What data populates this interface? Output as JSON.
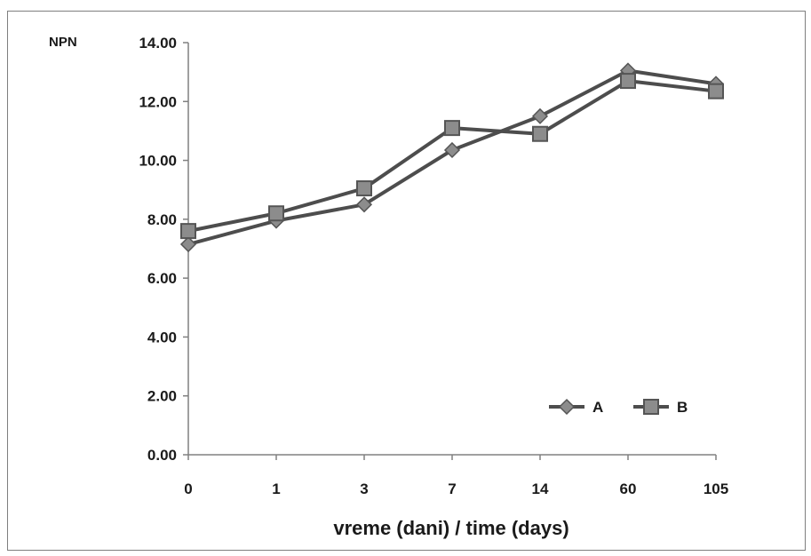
{
  "chart_data": {
    "type": "line",
    "title": "",
    "ylabel": "NPN",
    "xlabel": "vreme (dani) / time (days)",
    "categories": [
      "0",
      "1",
      "3",
      "7",
      "14",
      "60",
      "105"
    ],
    "yticks": [
      "0.00",
      "2.00",
      "4.00",
      "6.00",
      "8.00",
      "10.00",
      "12.00",
      "14.00"
    ],
    "ylim": [
      0,
      14
    ],
    "grid": false,
    "legend_position": "bottom-right",
    "series": [
      {
        "name": "A",
        "marker": "diamond",
        "values": [
          7.15,
          7.95,
          8.5,
          10.35,
          11.5,
          13.05,
          12.6
        ]
      },
      {
        "name": "B",
        "marker": "square",
        "values": [
          7.6,
          8.2,
          9.05,
          11.1,
          10.9,
          12.7,
          12.35
        ]
      }
    ],
    "colors": {
      "line": "#4d4d4d",
      "marker_fill": "#8c8c8c",
      "marker_stroke": "#555555",
      "axis": "#808080"
    }
  }
}
